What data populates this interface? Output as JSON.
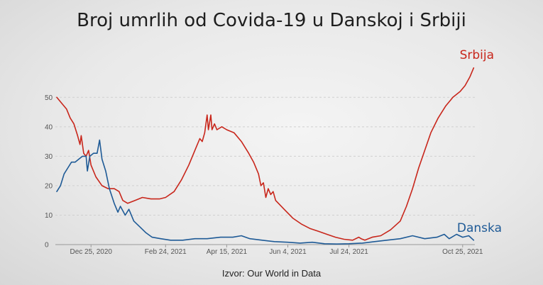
{
  "title": "Broj umrlih od Covida-19 u Danskoj i Srbiji",
  "source": "Izvor: Our World in Data",
  "colors": {
    "serbia": "#c8261b",
    "denmark": "#1e5a96",
    "axis": "#999999",
    "grid": "#d0d0d0"
  },
  "chart_data": {
    "type": "line",
    "xlabel": "",
    "ylabel": "",
    "ylim": [
      0,
      52
    ],
    "xlim": [
      "2020-11-27",
      "2021-11-04"
    ],
    "yticks": [
      0,
      10,
      20,
      30,
      40,
      50
    ],
    "xticks": [
      {
        "date": "2020-12-25",
        "label": "Dec 25, 2020"
      },
      {
        "date": "2021-02-24",
        "label": "Feb 24, 2021"
      },
      {
        "date": "2021-04-15",
        "label": "Apr 15, 2021"
      },
      {
        "date": "2021-06-04",
        "label": "Jun 4, 2021"
      },
      {
        "date": "2021-07-24",
        "label": "Jul 24, 2021"
      },
      {
        "date": "2021-10-25",
        "label": "Oct 25, 2021"
      }
    ],
    "grid": "horizontal",
    "series": [
      {
        "name": "Srbija",
        "color": "#c8261b",
        "points": [
          [
            "2020-11-27",
            50
          ],
          [
            "2020-12-01",
            48
          ],
          [
            "2020-12-05",
            46
          ],
          [
            "2020-12-08",
            43
          ],
          [
            "2020-12-11",
            41
          ],
          [
            "2020-12-14",
            37
          ],
          [
            "2020-12-16",
            34
          ],
          [
            "2020-12-17",
            37
          ],
          [
            "2020-12-19",
            31
          ],
          [
            "2020-12-21",
            30
          ],
          [
            "2020-12-23",
            32
          ],
          [
            "2020-12-25",
            27
          ],
          [
            "2020-12-29",
            23
          ],
          [
            "2021-01-03",
            20
          ],
          [
            "2021-01-08",
            19
          ],
          [
            "2021-01-13",
            19
          ],
          [
            "2021-01-17",
            18
          ],
          [
            "2021-01-20",
            15
          ],
          [
            "2021-01-24",
            14
          ],
          [
            "2021-01-30",
            15
          ],
          [
            "2021-02-05",
            16
          ],
          [
            "2021-02-12",
            15.5
          ],
          [
            "2021-02-19",
            15.5
          ],
          [
            "2021-02-24",
            16
          ],
          [
            "2021-03-03",
            18
          ],
          [
            "2021-03-09",
            22
          ],
          [
            "2021-03-15",
            27
          ],
          [
            "2021-03-21",
            33
          ],
          [
            "2021-03-24",
            36
          ],
          [
            "2021-03-26",
            35
          ],
          [
            "2021-03-28",
            38
          ],
          [
            "2021-03-30",
            44
          ],
          [
            "2021-03-31",
            39
          ],
          [
            "2021-04-02",
            44
          ],
          [
            "2021-04-03",
            39
          ],
          [
            "2021-04-05",
            41
          ],
          [
            "2021-04-07",
            39
          ],
          [
            "2021-04-11",
            40
          ],
          [
            "2021-04-15",
            39
          ],
          [
            "2021-04-21",
            38
          ],
          [
            "2021-04-27",
            35
          ],
          [
            "2021-05-03",
            31
          ],
          [
            "2021-05-07",
            28
          ],
          [
            "2021-05-11",
            24
          ],
          [
            "2021-05-13",
            20
          ],
          [
            "2021-05-15",
            21
          ],
          [
            "2021-05-17",
            16
          ],
          [
            "2021-05-19",
            19
          ],
          [
            "2021-05-21",
            17
          ],
          [
            "2021-05-23",
            18
          ],
          [
            "2021-05-25",
            15
          ],
          [
            "2021-06-01",
            12
          ],
          [
            "2021-06-08",
            9
          ],
          [
            "2021-06-15",
            7
          ],
          [
            "2021-06-22",
            5.5
          ],
          [
            "2021-06-29",
            4.5
          ],
          [
            "2021-07-06",
            3.5
          ],
          [
            "2021-07-13",
            2.5
          ],
          [
            "2021-07-20",
            1.8
          ],
          [
            "2021-07-27",
            1.5
          ],
          [
            "2021-08-01",
            2.5
          ],
          [
            "2021-08-03",
            2
          ],
          [
            "2021-08-06",
            1.5
          ],
          [
            "2021-08-12",
            2.5
          ],
          [
            "2021-08-19",
            3
          ],
          [
            "2021-08-27",
            5
          ],
          [
            "2021-09-04",
            8
          ],
          [
            "2021-09-09",
            13
          ],
          [
            "2021-09-14",
            19
          ],
          [
            "2021-09-19",
            26
          ],
          [
            "2021-09-24",
            32
          ],
          [
            "2021-09-29",
            38
          ],
          [
            "2021-10-05",
            43
          ],
          [
            "2021-10-11",
            47
          ],
          [
            "2021-10-17",
            50
          ],
          [
            "2021-10-23",
            52
          ],
          [
            "2021-10-27",
            54
          ],
          [
            "2021-10-31",
            57
          ],
          [
            "2021-11-03",
            60
          ]
        ]
      },
      {
        "name": "Danska",
        "color": "#1e5a96",
        "points": [
          [
            "2020-11-27",
            18
          ],
          [
            "2020-11-30",
            20
          ],
          [
            "2020-12-03",
            24
          ],
          [
            "2020-12-06",
            26
          ],
          [
            "2020-12-09",
            28
          ],
          [
            "2020-12-12",
            28
          ],
          [
            "2020-12-15",
            29
          ],
          [
            "2020-12-18",
            30
          ],
          [
            "2020-12-21",
            30
          ],
          [
            "2020-12-22",
            25
          ],
          [
            "2020-12-24",
            30
          ],
          [
            "2020-12-27",
            31
          ],
          [
            "2020-12-30",
            31
          ],
          [
            "2021-01-01",
            35.5
          ],
          [
            "2021-01-03",
            29
          ],
          [
            "2021-01-06",
            25
          ],
          [
            "2021-01-09",
            19
          ],
          [
            "2021-01-13",
            14
          ],
          [
            "2021-01-16",
            11
          ],
          [
            "2021-01-18",
            13
          ],
          [
            "2021-01-22",
            10
          ],
          [
            "2021-01-25",
            12
          ],
          [
            "2021-01-29",
            8
          ],
          [
            "2021-02-03",
            6
          ],
          [
            "2021-02-08",
            4
          ],
          [
            "2021-02-13",
            2.5
          ],
          [
            "2021-02-20",
            2
          ],
          [
            "2021-02-28",
            1.5
          ],
          [
            "2021-03-10",
            1.5
          ],
          [
            "2021-03-20",
            2
          ],
          [
            "2021-03-30",
            2
          ],
          [
            "2021-04-10",
            2.5
          ],
          [
            "2021-04-20",
            2.5
          ],
          [
            "2021-04-27",
            3
          ],
          [
            "2021-05-04",
            2
          ],
          [
            "2021-05-14",
            1.5
          ],
          [
            "2021-05-24",
            1
          ],
          [
            "2021-06-04",
            0.8
          ],
          [
            "2021-06-14",
            0.5
          ],
          [
            "2021-06-24",
            0.8
          ],
          [
            "2021-07-04",
            0.3
          ],
          [
            "2021-07-14",
            0.2
          ],
          [
            "2021-07-24",
            0.3
          ],
          [
            "2021-08-04",
            0.5
          ],
          [
            "2021-08-14",
            1
          ],
          [
            "2021-08-24",
            1.5
          ],
          [
            "2021-09-04",
            2
          ],
          [
            "2021-09-14",
            3
          ],
          [
            "2021-09-24",
            2
          ],
          [
            "2021-10-04",
            2.5
          ],
          [
            "2021-10-10",
            3.5
          ],
          [
            "2021-10-14",
            2
          ],
          [
            "2021-10-20",
            3.5
          ],
          [
            "2021-10-25",
            2.5
          ],
          [
            "2021-10-30",
            3
          ],
          [
            "2021-11-03",
            1.5
          ]
        ]
      }
    ]
  }
}
